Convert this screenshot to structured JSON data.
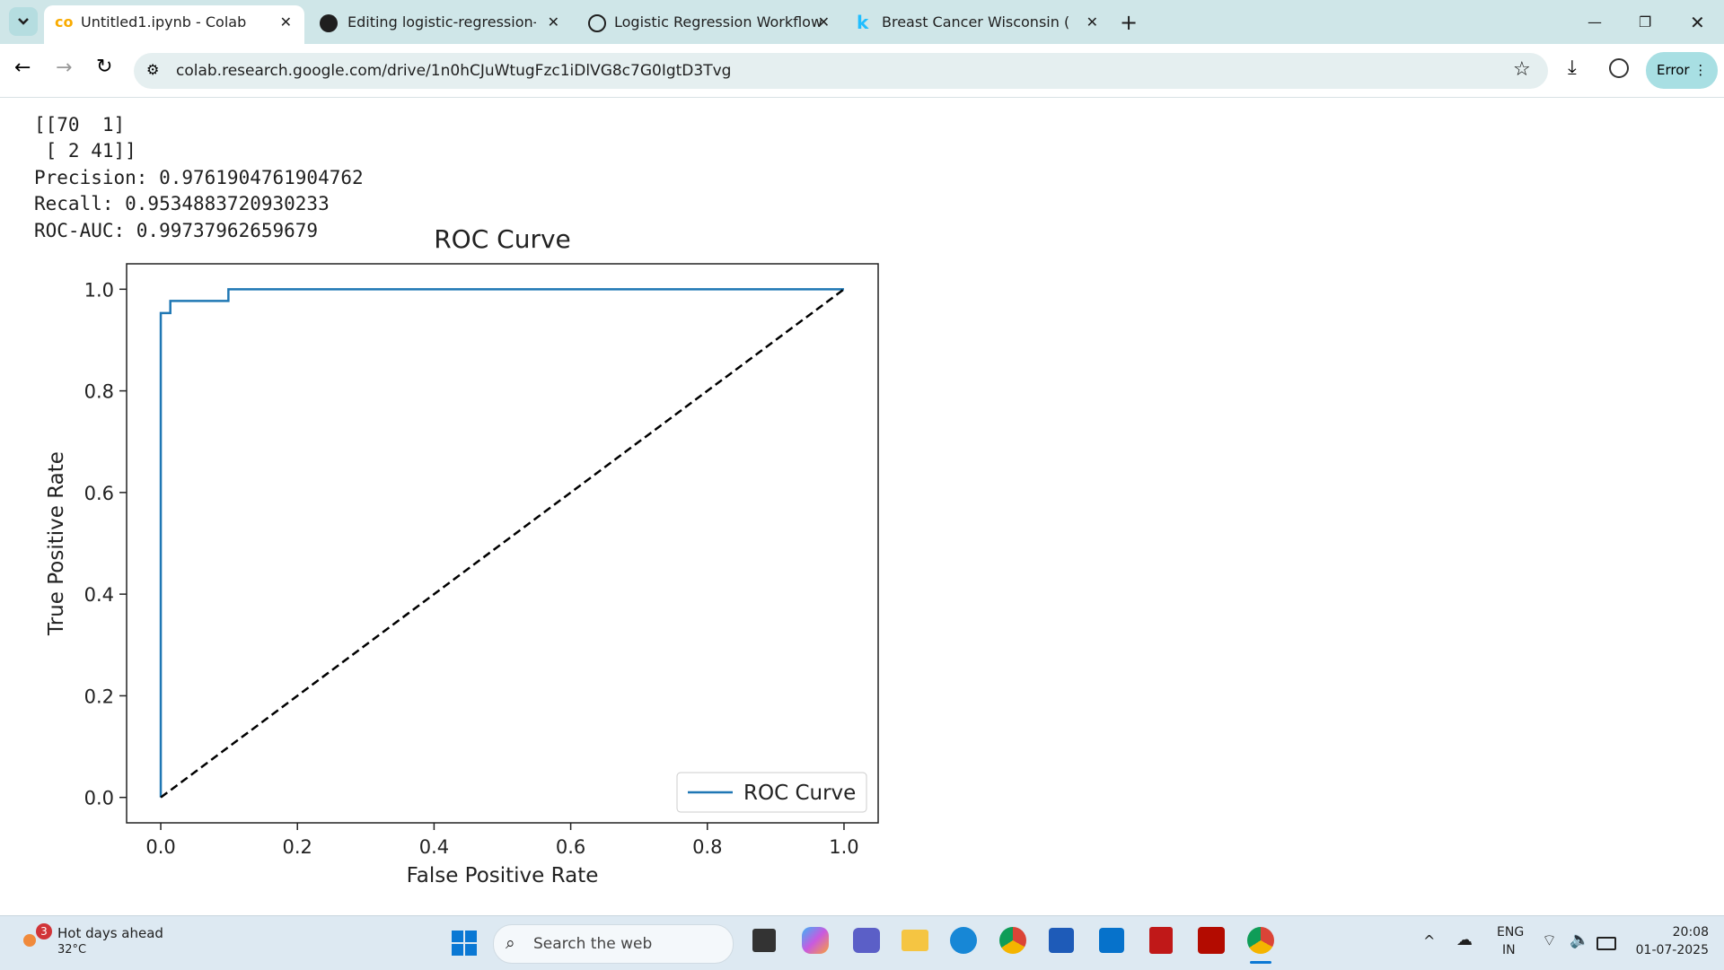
{
  "browser": {
    "tabs": [
      "Untitled1.ipynb - Colab",
      "Editing logistic-regression-clea",
      "Logistic Regression Workflow",
      "Breast Cancer Wisconsin (Diagn"
    ],
    "url": "colab.research.google.com/drive/1n0hCJuWtugFzc1iDlVG8c7G0IgtD3Tvg",
    "profile_button": "Error"
  },
  "output": {
    "lines": [
      "[[70  1]",
      " [ 2 41]]",
      "Precision: 0.9761904761904762",
      "Recall: 0.9534883720930233",
      "ROC-AUC: 0.99737962659679"
    ]
  },
  "chart_data": {
    "type": "line",
    "title": "ROC Curve",
    "x_label": "False Positive Rate",
    "y_label": "True Positive Rate",
    "series": [
      {
        "name": "ROC Curve",
        "color": "#1f77b4",
        "line_style": "solid",
        "x": [
          0,
          0,
          0.014,
          0.014,
          0.099,
          0.099,
          1
        ],
        "values": [
          0,
          0.953,
          0.953,
          0.977,
          0.977,
          1,
          1
        ]
      },
      {
        "color": "#000000",
        "line_style": "dashed",
        "x": [
          0,
          1
        ],
        "values": [
          0,
          1
        ]
      }
    ],
    "xlim": [
      -0.05,
      1.05
    ],
    "ylim": [
      -0.05,
      1.05
    ],
    "xticks": [
      {
        "value": 0,
        "label": "0.0"
      },
      0.2,
      0.4,
      0.6,
      0.8,
      {
        "value": 1,
        "label": "1.0"
      }
    ],
    "yticks": [
      {
        "value": 0,
        "label": "0.0"
      },
      0.2,
      0.4,
      0.6,
      0.8,
      {
        "value": 1,
        "label": "1.0"
      }
    ],
    "grid": false,
    "legend": "lower right"
  },
  "taskbar": {
    "weather_badge": "3",
    "weather_title": "Hot days ahead",
    "temperature": "32°C",
    "search": "Search the web",
    "language": "ENG",
    "region": "IN",
    "time": "20:08",
    "date": "01-07-2025"
  }
}
